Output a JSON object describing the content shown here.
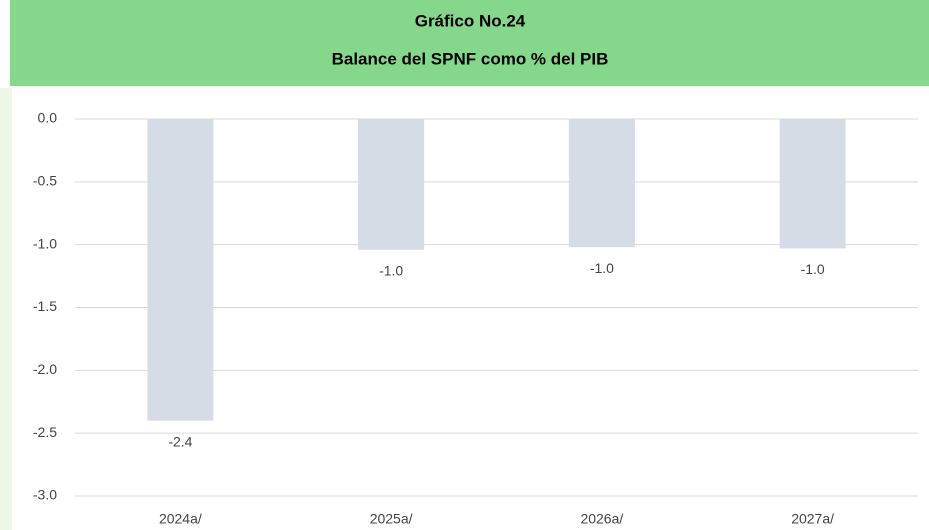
{
  "chart_data": {
    "type": "bar",
    "title": "Gráfico No.24",
    "subtitle": "Balance del SPNF como % del PIB",
    "categories": [
      "2024a/",
      "2025a/",
      "2026a/",
      "2027a/"
    ],
    "values": [
      -2.4,
      -1.04,
      -1.02,
      -1.03
    ],
    "value_labels": [
      "-2.4",
      "-1.0",
      "-1.0",
      "-1.0"
    ],
    "color": "#d6dce5",
    "ylim": [
      -3.0,
      0.0
    ],
    "yticks": [
      {
        "value": 0,
        "label": "0.0"
      },
      {
        "value": -0.5,
        "label": "-0.5"
      },
      {
        "value": -1,
        "label": "-1.0"
      },
      {
        "value": -1.5,
        "label": "-1.5"
      },
      {
        "value": -2,
        "label": "-2.0"
      },
      {
        "value": -2.5,
        "label": "-2.5"
      },
      {
        "value": -3,
        "label": "-3.0"
      }
    ],
    "grid": true
  }
}
